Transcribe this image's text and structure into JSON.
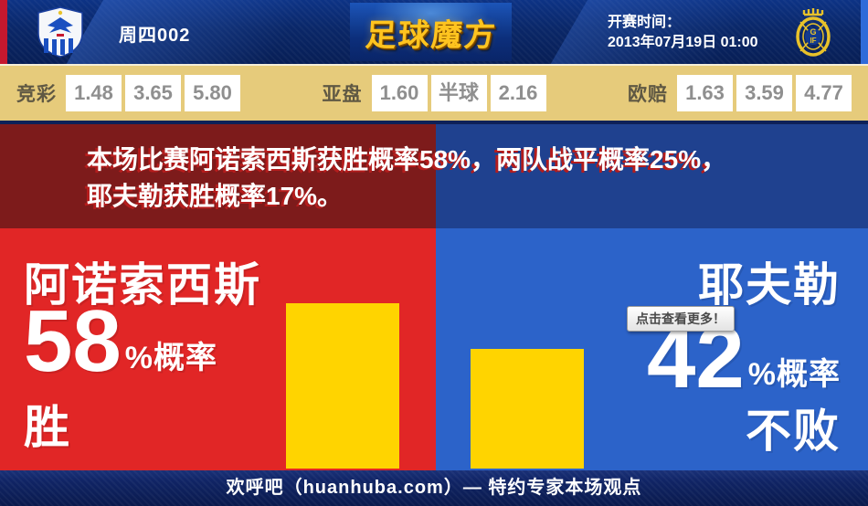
{
  "header": {
    "match_code": "周四002",
    "site_logo": "足球魔方",
    "kickoff_label": "开赛时间：",
    "kickoff_time": "2013年07月19日 01:00",
    "home_crest": "anorthosis-crest",
    "away_crest": "gefle-if-crest"
  },
  "odds_bar": {
    "groups": [
      {
        "label": "竞彩",
        "values": [
          "1.48",
          "3.65",
          "5.80"
        ]
      },
      {
        "label": "亚盘",
        "values": [
          "1.60",
          "半球",
          "2.16"
        ]
      },
      {
        "label": "欧赔",
        "values": [
          "1.63",
          "3.59",
          "4.77"
        ]
      }
    ]
  },
  "summary": {
    "line1": "本场比赛阿诺索西斯获胜概率58%，两队战平概率25%，",
    "line2": "耶夫勒获胜概率17%。"
  },
  "home_panel": {
    "team": "阿诺索西斯",
    "percent": "58",
    "percent_suffix": "%概率",
    "outcome": "胜",
    "bar_percent": 58
  },
  "away_panel": {
    "team": "耶夫勒",
    "percent": "42",
    "percent_suffix": "%概率",
    "outcome": "不败",
    "bar_percent": 42,
    "tooltip": "点击查看更多！"
  },
  "footer": {
    "text": "欢呼吧（huanhuba.com）— 特约专家本场观点"
  },
  "colors": {
    "panel_red": "#e12626",
    "panel_blue": "#2c63c9",
    "bar_yellow": "#ffd400",
    "odds_tan": "#e6cb7b",
    "header_navy": "#0a2768",
    "summary_red": "#7d1b1b",
    "summary_blue": "#1f418f"
  }
}
